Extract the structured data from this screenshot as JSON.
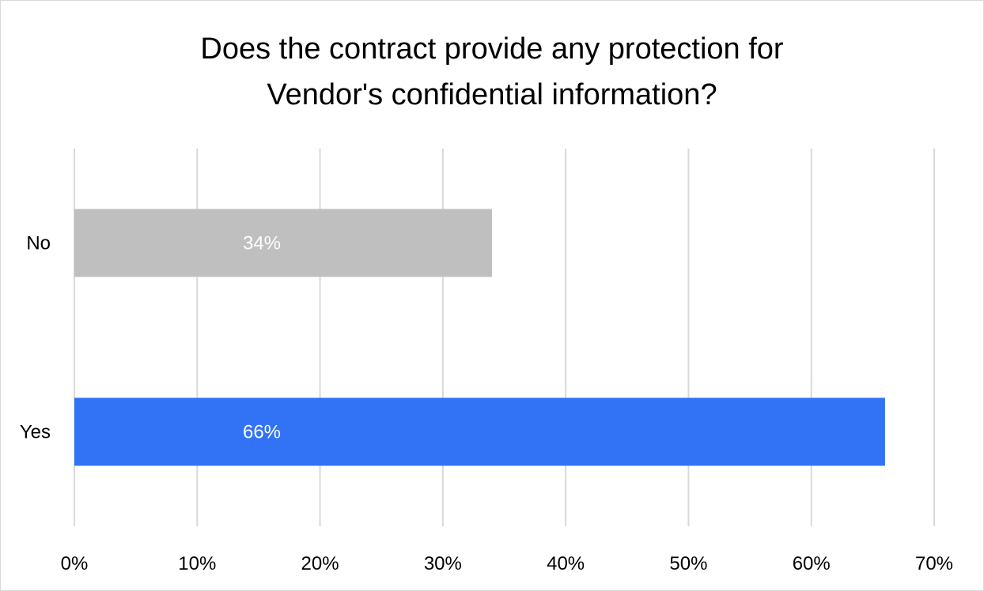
{
  "chart_data": {
    "type": "bar",
    "orientation": "horizontal",
    "title_lines": [
      "Does the contract provide any protection for",
      "Vendor's confidential information?"
    ],
    "categories": [
      "No",
      "Yes"
    ],
    "values": [
      34,
      66
    ],
    "data_labels": [
      "34%",
      "66%"
    ],
    "bar_colors": [
      "#bfbfbf",
      "#3273f5"
    ],
    "xlim": [
      0,
      70
    ],
    "x_ticks": [
      0,
      10,
      20,
      30,
      40,
      50,
      60,
      70
    ],
    "x_tick_labels": [
      "0%",
      "10%",
      "20%",
      "30%",
      "40%",
      "50%",
      "60%",
      "70%"
    ],
    "grid": true,
    "legend": "none"
  }
}
